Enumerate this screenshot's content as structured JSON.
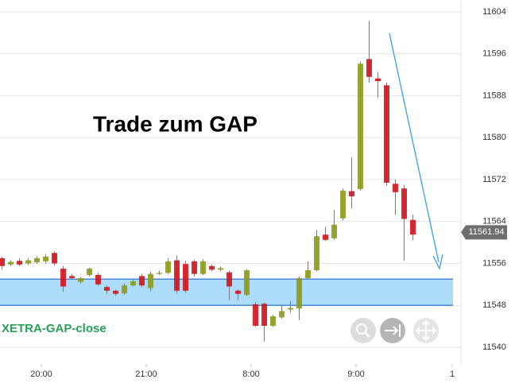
{
  "chart_data": {
    "type": "candlestick",
    "annotation": "Trade zum GAP",
    "zone": {
      "from": 11548,
      "to": 11553,
      "label": "XETRA-GAP-close",
      "color": "#acdcfa",
      "edge_color": "#4a86d8"
    },
    "last_price": 11561.94,
    "categories": [
      null,
      null,
      null,
      null,
      null,
      null,
      null,
      null,
      null,
      null,
      null,
      null,
      null,
      null,
      null,
      null,
      null,
      null,
      null,
      null,
      null,
      null,
      null,
      null,
      null,
      null,
      null,
      null,
      null,
      null,
      null,
      null,
      null,
      null,
      null,
      null,
      null,
      null,
      null,
      null,
      null,
      null,
      null,
      null,
      null,
      null,
      null,
      null
    ],
    "open": [
      11557,
      11555.8,
      11556.5,
      11556,
      11556.2,
      11556.4,
      11558,
      11555,
      11553.6,
      11552.5,
      11553.8,
      11553.8,
      11551.5,
      11550.8,
      11550.3,
      11551.8,
      11553.6,
      11551.3,
      11554,
      11554.2,
      11556.6,
      11555.9,
      11556.4,
      11554,
      11555.5,
      11554.8,
      11554.3,
      11550.8,
      11550,
      11548.2,
      11548.3,
      11544.1,
      11545.7,
      11547.2,
      11547.4,
      11553.2,
      11554.7,
      11561.5,
      11560.8,
      11564.6,
      11569.8,
      11570.2,
      11595,
      11591.3,
      11590,
      11571.2,
      11570.3,
      11564.3
    ],
    "high": [
      11557.3,
      11556.6,
      11557,
      11557,
      11557.4,
      11557.8,
      11558.3,
      11555.5,
      11554,
      11553.4,
      11555.2,
      11554.2,
      11551.8,
      11551,
      11552.2,
      11553,
      11554,
      11554.4,
      11554.6,
      11557,
      11557.5,
      11556.5,
      11556.7,
      11556.8,
      11555.8,
      11555.4,
      11554.6,
      11551,
      11554.9,
      11548.6,
      11548.5,
      11546.2,
      11548,
      11548.8,
      11553.5,
      11556.4,
      11562.4,
      11563,
      11566.2,
      11570.3,
      11576.2,
      11594.5,
      11602.3,
      11592.5,
      11590.5,
      11572,
      11571,
      11565.3
    ],
    "low": [
      11554.8,
      11555.5,
      11555.5,
      11555.7,
      11555.9,
      11556,
      11555.6,
      11550.6,
      11553,
      11552.2,
      11553.5,
      11551.7,
      11550.2,
      11549.8,
      11550,
      11551.6,
      11551.5,
      11550.7,
      11553.8,
      11554,
      11550.3,
      11550.4,
      11553.5,
      11553.8,
      11554.5,
      11554.5,
      11549,
      11549,
      11549.8,
      11543.9,
      11541.1,
      11543.9,
      11545.5,
      11546.6,
      11545.2,
      11553,
      11554.5,
      11560.3,
      11560.5,
      11564.2,
      11566.5,
      11569.9,
      11590.5,
      11587.6,
      11570.8,
      11565.3,
      11556.5,
      11560.4
    ],
    "close": [
      11555.5,
      11556.3,
      11555.8,
      11556.6,
      11557,
      11557.3,
      11556,
      11551.6,
      11553.2,
      11553.2,
      11555,
      11552,
      11550.8,
      11550.2,
      11551.8,
      11552.6,
      11551.8,
      11554,
      11554.2,
      11556.4,
      11550.8,
      11550.8,
      11554,
      11556.4,
      11554.8,
      11555.1,
      11551.6,
      11550.2,
      11554.7,
      11544.1,
      11544.1,
      11545.9,
      11546.9,
      11547.5,
      11553.2,
      11554.7,
      11561.2,
      11560.5,
      11563.4,
      11569.9,
      11568.8,
      11594.1,
      11591.6,
      11590.8,
      11571.4,
      11569.6,
      11564.5,
      11561.5
    ],
    "up_color": "#8c9b1c",
    "down_color": "#d2141c",
    "wick_color": "#7a7a7a",
    "xlim": [
      -0.23,
      52.5
    ],
    "xticks": [
      {
        "value": 4.5,
        "label": "20:00"
      },
      {
        "value": 16.5,
        "label": "21:00"
      },
      {
        "value": 28.5,
        "label": "8:00"
      },
      {
        "value": 40.5,
        "label": "9:00"
      },
      {
        "value": 51.5,
        "label": "1"
      }
    ],
    "ylim": [
      11537,
      11606
    ],
    "yticks": [
      11540,
      11548,
      11556,
      11564,
      11572,
      11580,
      11588,
      11596,
      11604
    ],
    "grid": true
  }
}
